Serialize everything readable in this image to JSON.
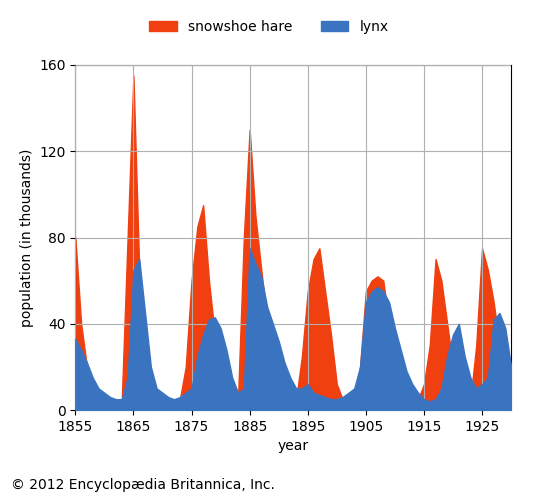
{
  "chart_data": {
    "type": "area",
    "x": [
      1855,
      1856,
      1857,
      1858,
      1859,
      1860,
      1861,
      1862,
      1863,
      1864,
      1865,
      1866,
      1867,
      1868,
      1869,
      1870,
      1871,
      1872,
      1873,
      1874,
      1875,
      1876,
      1877,
      1878,
      1879,
      1880,
      1881,
      1882,
      1883,
      1884,
      1885,
      1886,
      1887,
      1888,
      1889,
      1890,
      1891,
      1892,
      1893,
      1894,
      1895,
      1896,
      1897,
      1898,
      1899,
      1900,
      1901,
      1902,
      1903,
      1904,
      1905,
      1906,
      1907,
      1908,
      1909,
      1910,
      1911,
      1912,
      1913,
      1914,
      1915,
      1916,
      1917,
      1918,
      1919,
      1920,
      1921,
      1922,
      1923,
      1924,
      1925,
      1926,
      1927,
      1928,
      1929,
      1930
    ],
    "series": [
      {
        "name": "snowshoe hare",
        "color": "#f04010",
        "values": [
          80,
          40,
          20,
          12,
          8,
          5,
          5,
          5,
          5,
          80,
          155,
          65,
          18,
          8,
          5,
          5,
          5,
          5,
          5,
          20,
          60,
          85,
          95,
          60,
          35,
          12,
          8,
          5,
          5,
          80,
          130,
          90,
          65,
          42,
          22,
          12,
          8,
          5,
          5,
          25,
          55,
          70,
          75,
          55,
          35,
          12,
          5,
          5,
          5,
          20,
          55,
          60,
          62,
          60,
          40,
          20,
          12,
          8,
          5,
          5,
          12,
          30,
          70,
          60,
          40,
          20,
          8,
          5,
          5,
          30,
          75,
          65,
          50,
          30,
          15,
          8
        ]
      },
      {
        "name": "lynx",
        "color": "#3a74c0",
        "values": [
          33,
          28,
          22,
          15,
          10,
          8,
          6,
          5,
          5,
          15,
          65,
          70,
          45,
          20,
          10,
          8,
          6,
          5,
          6,
          8,
          10,
          25,
          35,
          42,
          43,
          38,
          28,
          15,
          8,
          10,
          75,
          68,
          62,
          48,
          40,
          32,
          22,
          15,
          10,
          10,
          12,
          8,
          7,
          6,
          5,
          5,
          6,
          8,
          10,
          20,
          50,
          55,
          57,
          55,
          50,
          38,
          28,
          18,
          12,
          8,
          5,
          4,
          5,
          10,
          25,
          35,
          40,
          25,
          15,
          10,
          12,
          15,
          42,
          45,
          38,
          20
        ]
      }
    ],
    "x_label": "year",
    "y_label": "population (in thousands)",
    "xlim": [
      1855,
      1930
    ],
    "xticks": [
      1855,
      1865,
      1875,
      1885,
      1895,
      1905,
      1915,
      1925
    ],
    "ylim": [
      0,
      160
    ],
    "yticks": [
      0,
      40,
      80,
      120,
      160
    ],
    "grid": true,
    "legend": "upper center",
    "annotations": [
      "© 2012 Encyclopædia Britannica, Inc."
    ]
  }
}
